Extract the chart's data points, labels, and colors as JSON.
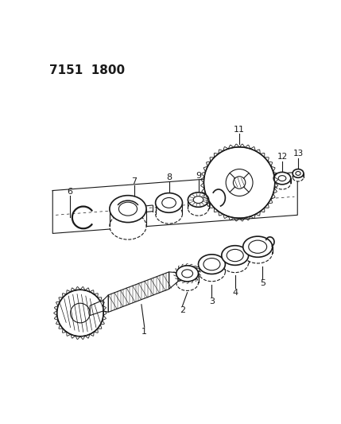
{
  "title": "7151  1800",
  "bg_color": "#ffffff",
  "line_color": "#1a1a1a",
  "title_fontsize": 11,
  "fig_width": 4.29,
  "fig_height": 5.33,
  "dpi": 100
}
